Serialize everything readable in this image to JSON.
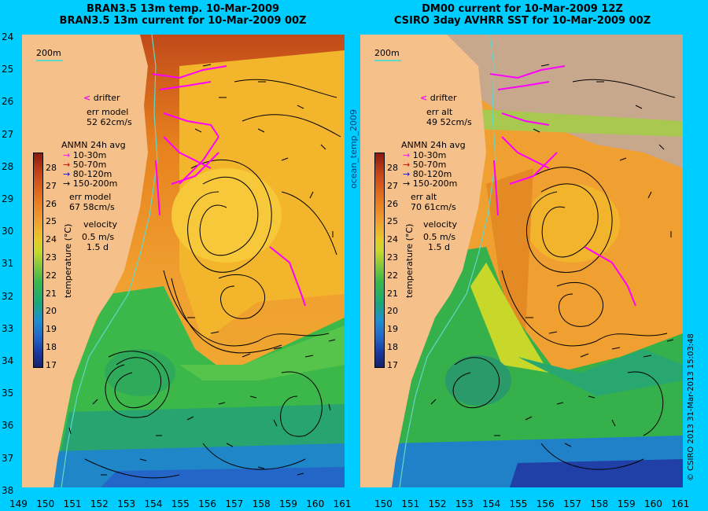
{
  "left_title": {
    "line1": "BRAN3.5 13m temp. 10-Mar-2009",
    "line2": "BRAN3.5 13m current for 10-Mar-2009 00Z"
  },
  "right_title": {
    "line1": "DM00 current for 10-Mar-2009 12Z",
    "line2": "CSIRO 3day AVHRR SST for 10-Mar-2009 00Z"
  },
  "left_panel": {
    "scale_label": "200m",
    "drifter_label": "drifter",
    "err_label": "err model",
    "err_value": "52 62cm/s",
    "anmn_title": "ANMN 24h avg",
    "depths": [
      "10-30m",
      "50-70m",
      "80-120m",
      "150-200m"
    ],
    "err2_label": "err model",
    "err2_value": "67 58cm/s",
    "velocity_label": "velocity",
    "velocity_value": "0.5 m/s",
    "velocity_days": "1.5 d",
    "temperature_unit": "temperature (°C)"
  },
  "right_panel": {
    "scale_label": "200m",
    "drifter_label": "drifter",
    "err_label": "err alt",
    "err_value": "49 52cm/s",
    "anmn_title": "ANMN 24h avg",
    "depths": [
      "10-30m",
      "50-70m",
      "80-120m",
      "150-200m"
    ],
    "err2_label": "err alt",
    "err2_value": "70 61cm/s",
    "velocity_label": "velocity",
    "velocity_value": "0.5 m/s",
    "velocity_days": "1.5 d",
    "temperature_unit": "temperature (°C)"
  },
  "center_vertical_label": "ocean_temp_2009",
  "copyright": "© CSIRO 2013   31-Mar-2013 15:03:48",
  "colorbar_ticks": [
    "28",
    "27",
    "26",
    "25",
    "24",
    "23",
    "22",
    "21",
    "20",
    "19",
    "18",
    "17"
  ],
  "lat_ticks": [
    "24",
    "25",
    "26",
    "27",
    "28",
    "29",
    "30",
    "31",
    "32",
    "33",
    "34",
    "35",
    "36",
    "37",
    "38"
  ],
  "lon_ticks_left": [
    "149",
    "150",
    "151",
    "152",
    "153",
    "154",
    "155",
    "156",
    "157",
    "158",
    "159",
    "160",
    "161"
  ],
  "lon_ticks_right": [
    "150",
    "151",
    "152",
    "153",
    "154",
    "155",
    "156",
    "157",
    "158",
    "159",
    "160",
    "161"
  ],
  "lon_tick_shared": "161",
  "depth_colors": [
    "#ff00ff",
    "#cc0000",
    "#0000ff",
    "#000000"
  ],
  "land_color": "#f5c08a"
}
